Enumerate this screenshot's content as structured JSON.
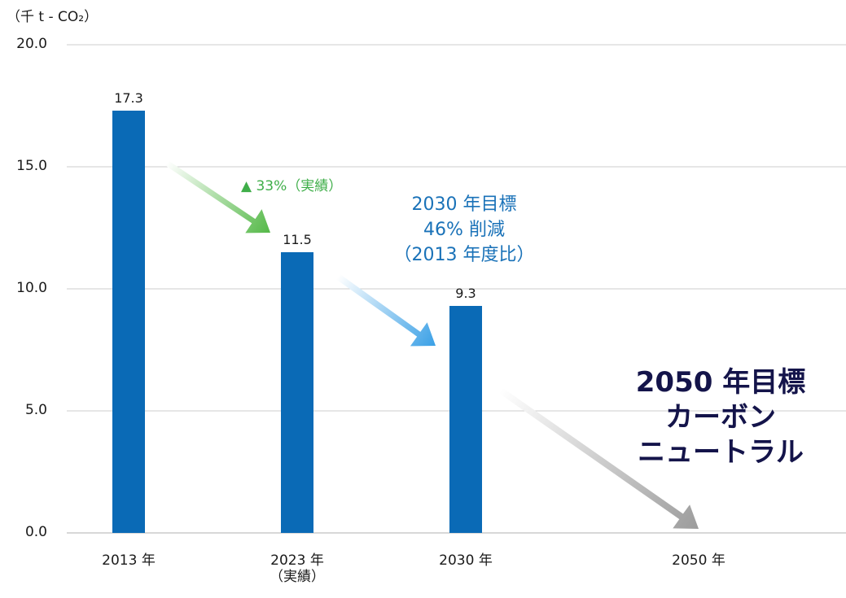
{
  "chart_data": {
    "type": "bar",
    "unit_label": "（千 t - CO₂）",
    "categories": [
      "2013 年",
      "2023 年",
      "2030 年",
      "2050 年"
    ],
    "category_sublabels": [
      "",
      "（実績）",
      "",
      ""
    ],
    "values": [
      17.3,
      11.5,
      9.3,
      0
    ],
    "value_labels": [
      "17.3",
      "11.5",
      "9.3",
      ""
    ],
    "ylim": [
      0,
      20
    ],
    "yticks": [
      "0.0",
      "5.0",
      "10.0",
      "15.0",
      "20.0"
    ],
    "grid": true,
    "bar_color": "#0a6ab6",
    "annotations": {
      "actual_reduction": "▲ 33%（実績）",
      "target_2030": [
        "2030 年目標",
        "46% 削減",
        "（2013 年度比）"
      ],
      "target_2050": [
        "2050 年目標",
        "カーボン",
        "ニュートラル"
      ]
    },
    "colors": {
      "actual_reduction": "#3fae49",
      "target_2030": "#1a72b8",
      "target_2050": "#14144a",
      "grid": "#cccccc"
    }
  }
}
